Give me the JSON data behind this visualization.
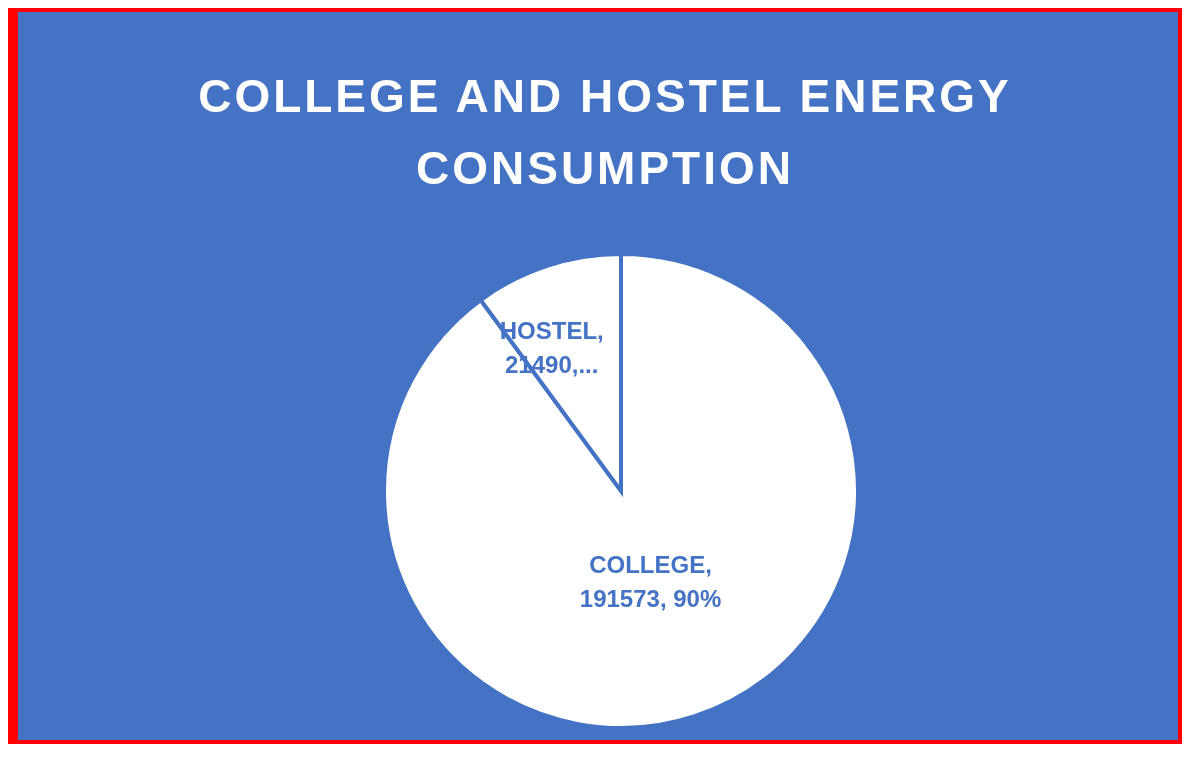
{
  "chart_data": {
    "type": "pie",
    "title": "COLLEGE AND HOSTEL ENERGY CONSUMPTION",
    "categories": [
      "COLLEGE",
      "HOSTEL"
    ],
    "values": [
      191573,
      21490
    ],
    "value_labels": [
      ", 191573, 90%",
      ", 21490,..."
    ],
    "colors": [
      "#ffffff",
      "#ffffff"
    ],
    "legend": false
  }
}
